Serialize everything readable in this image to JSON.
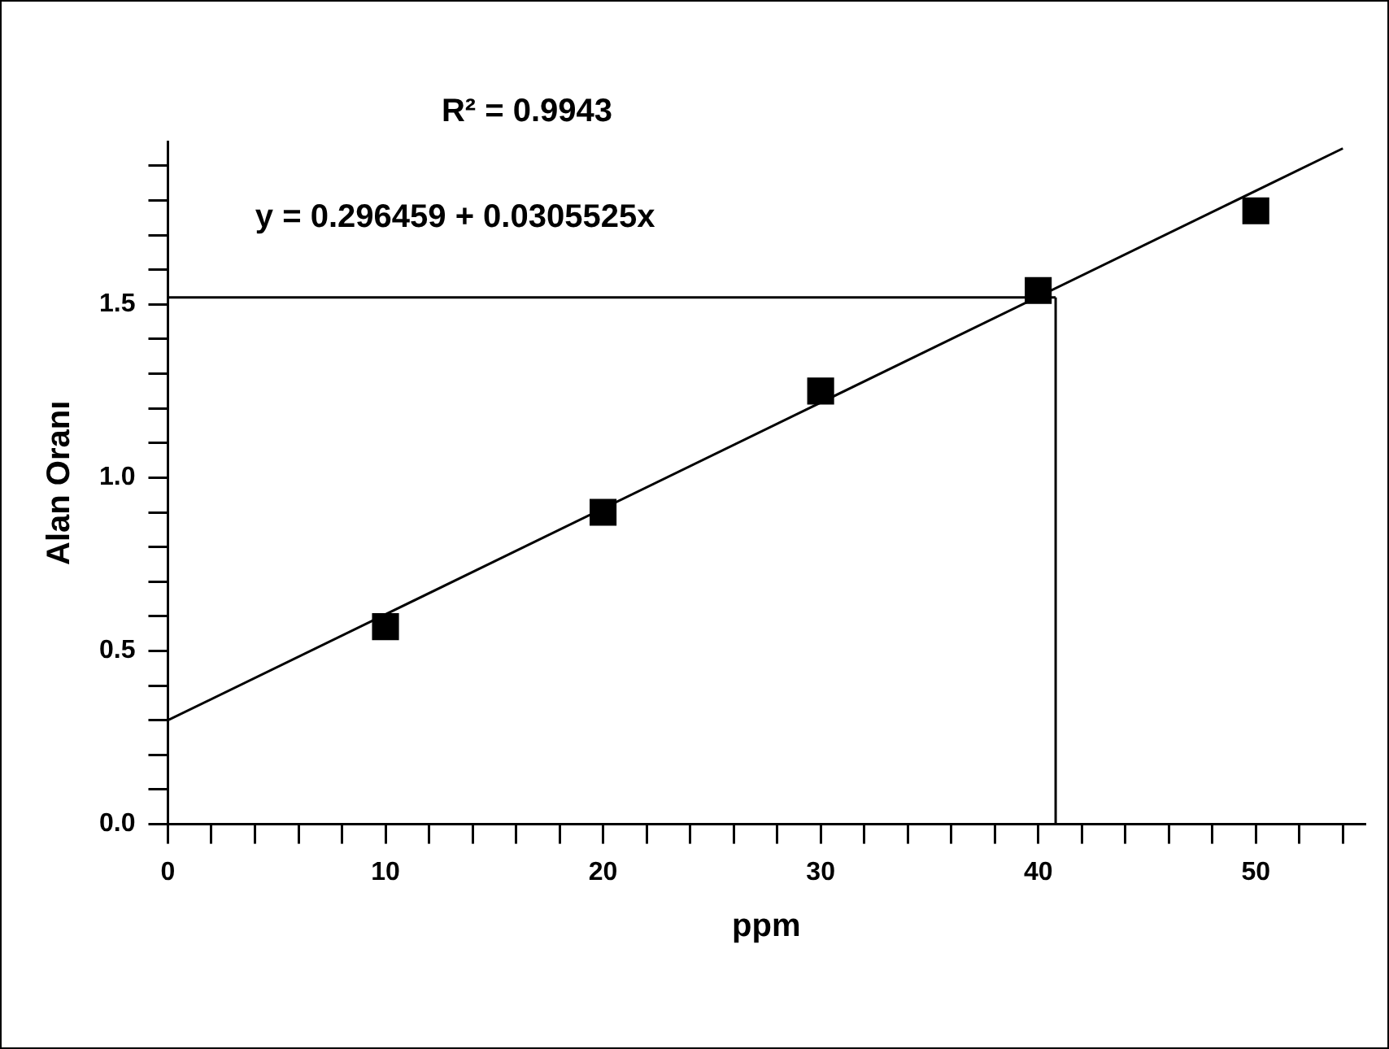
{
  "chart_data": {
    "type": "scatter",
    "xlabel": "ppm",
    "ylabel": "Alan Oranı",
    "annotations": [
      "R² = 0.9943",
      "y = 0.296459 + 0.0305525x"
    ],
    "x": [
      10,
      20,
      30,
      40,
      50
    ],
    "series": [
      {
        "type": "scatter",
        "color": "#000000",
        "marker": "square",
        "values": [
          0.57,
          0.9,
          1.25,
          1.54,
          1.77
        ]
      },
      {
        "type": "line",
        "color": "#000000",
        "marker": "none",
        "line_style": "solid",
        "x": [
          0,
          54
        ],
        "values": [
          0.3,
          1.95
        ]
      }
    ],
    "ref_lines": [
      {
        "axis": "y",
        "value": 1.52,
        "color": "#000000"
      },
      {
        "axis": "x",
        "value": 40.8,
        "color": "#000000"
      }
    ],
    "xlim": [
      0,
      55
    ],
    "ylim": [
      0,
      1.97
    ],
    "xticks": [
      0,
      {
        "value": 2,
        "label": null
      },
      {
        "value": 4,
        "label": null
      },
      {
        "value": 6,
        "label": null
      },
      {
        "value": 8,
        "label": null
      },
      10,
      {
        "value": 12,
        "label": null
      },
      {
        "value": 14,
        "label": null
      },
      {
        "value": 16,
        "label": null
      },
      {
        "value": 18,
        "label": null
      },
      20,
      {
        "value": 22,
        "label": null
      },
      {
        "value": 24,
        "label": null
      },
      {
        "value": 26,
        "label": null
      },
      {
        "value": 28,
        "label": null
      },
      30,
      {
        "value": 32,
        "label": null
      },
      {
        "value": 34,
        "label": null
      },
      {
        "value": 36,
        "label": null
      },
      {
        "value": 38,
        "label": null
      },
      40,
      {
        "value": 42,
        "label": null
      },
      {
        "value": 44,
        "label": null
      },
      {
        "value": 46,
        "label": null
      },
      {
        "value": 48,
        "label": null
      },
      50,
      {
        "value": 52,
        "label": null
      },
      {
        "value": 54,
        "label": null
      }
    ],
    "yticks": [
      {
        "value": 0,
        "label": "0.0"
      },
      {
        "value": 0.1,
        "label": null
      },
      {
        "value": 0.2,
        "label": null
      },
      {
        "value": 0.3,
        "label": null
      },
      {
        "value": 0.4,
        "label": null
      },
      0.5,
      {
        "value": 0.6,
        "label": null
      },
      {
        "value": 0.7,
        "label": null
      },
      {
        "value": 0.8,
        "label": null
      },
      {
        "value": 0.9,
        "label": null
      },
      {
        "value": 1.0,
        "label": "1.0"
      },
      {
        "value": 1.1,
        "label": null
      },
      {
        "value": 1.2,
        "label": null
      },
      {
        "value": 1.3,
        "label": null
      },
      {
        "value": 1.4,
        "label": null
      },
      1.5,
      {
        "value": 1.6,
        "label": null
      },
      {
        "value": 1.7,
        "label": null
      },
      {
        "value": 1.8,
        "label": null
      },
      {
        "value": 1.9,
        "label": null
      }
    ],
    "grid": false,
    "legend": false
  }
}
